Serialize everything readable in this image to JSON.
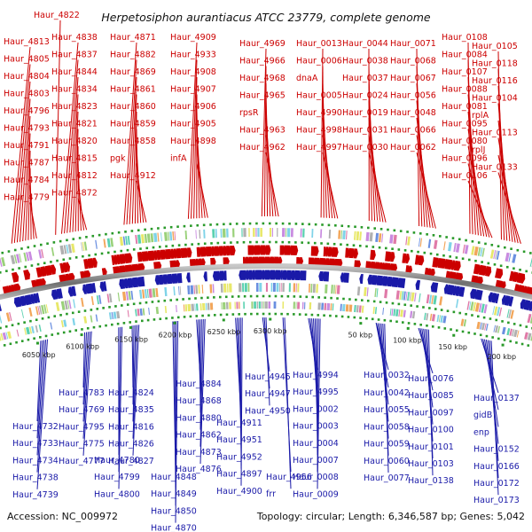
{
  "title": "Herpetosiphon aurantiacus ATCC 23779, complete genome",
  "footer": {
    "accession": "Accession: NC_009972",
    "info": "Topology: circular; Length: 6,346,587 bp; Genes: 5,042"
  },
  "colors": {
    "top_genes": "#cc0000",
    "bottom_genes": "#1a1aa8",
    "backbone": "#888888",
    "tick_marks": "#2a9a2a"
  },
  "scale_ticks": [
    "6050 kbp",
    "6100 kbp",
    "6150 kbp",
    "6200 kbp",
    "6250 kbp",
    "6300 kbp",
    "50 kbp",
    "100 kbp",
    "150 kbp",
    "200 kbp"
  ],
  "top_labels": [
    "Haur_4822",
    "Haur_4813",
    "Haur_4805",
    "Haur_4804",
    "Haur_4803",
    "Haur_4796",
    "Haur_4793",
    "Haur_4791",
    "Haur_4787",
    "Haur_4784",
    "Haur_4779",
    "Haur_4838",
    "Haur_4837",
    "Haur_4844",
    "Haur_4834",
    "Haur_4823",
    "Haur_4821",
    "Haur_4820",
    "Haur_4815",
    "Haur_4812",
    "Haur_4872",
    "Haur_4871",
    "Haur_4882",
    "Haur_4869",
    "Haur_4861",
    "Haur_4860",
    "Haur_4859",
    "Haur_4858",
    "pgk",
    "Haur_4912",
    "Haur_4909",
    "Haur_4933",
    "Haur_4908",
    "Haur_4907",
    "Haur_4906",
    "Haur_4905",
    "Haur_4898",
    "infA",
    "Haur_4969",
    "Haur_4966",
    "Haur_4968",
    "Haur_4965",
    "rpsR",
    "Haur_4963",
    "Haur_4962",
    "Haur_0013",
    "Haur_0006",
    "dnaA",
    "Haur_0005",
    "Haur_4990",
    "Haur_4998",
    "Haur_4997",
    "Haur_0044",
    "Haur_0038",
    "Haur_0037",
    "Haur_0024",
    "Haur_0019",
    "Haur_0031",
    "Haur_0030",
    "Haur_0071",
    "Haur_0068",
    "Haur_0067",
    "Haur_0056",
    "Haur_0048",
    "Haur_0066",
    "Haur_0062",
    "Haur_0108",
    "Haur_0084",
    "Haur_0107",
    "Haur_0088",
    "Haur_0081",
    "Haur_0095",
    "Haur_0080",
    "Haur_0096",
    "Haur_0106",
    "Haur_0105",
    "Haur_0118",
    "Haur_0116",
    "Haur_0104",
    "rplA",
    "Haur_0113",
    "rplJ",
    "Haur_0133"
  ],
  "bottom_labels": [
    "Haur_4783",
    "Haur_4769",
    "Haur_4795",
    "Haur_4775",
    "Haur_4777",
    "Haur_4732",
    "Haur_4733",
    "Haur_4734",
    "Haur_4738",
    "Haur_4739",
    "Haur_4824",
    "Haur_4835",
    "Haur_4816",
    "Haur_4826",
    "Haur_4827",
    "Haur_4780",
    "Haur_4799",
    "Haur_4800",
    "Haur_4884",
    "Haur_4868",
    "Haur_4880",
    "Haur_4862",
    "Haur_4873",
    "Haur_4876",
    "Haur_4848",
    "Haur_4849",
    "Haur_4850",
    "Haur_4870",
    "Haur_4945",
    "Haur_4947",
    "Haur_4950",
    "Haur_4911",
    "Haur_4951",
    "Haur_4952",
    "Haur_4897",
    "Haur_4900",
    "Haur_4956",
    "frr",
    "Haur_4994",
    "Haur_4995",
    "Haur_0002",
    "Haur_0003",
    "Haur_0004",
    "Haur_0007",
    "Haur_0008",
    "Haur_0009",
    "Haur_0032",
    "Haur_0042",
    "Haur_0055",
    "Haur_0058",
    "Haur_0059",
    "Haur_0060",
    "Haur_0077",
    "Haur_0076",
    "Haur_0085",
    "Haur_0097",
    "Haur_0100",
    "Haur_0101",
    "Haur_0103",
    "Haur_0138",
    "Haur_0137",
    "gidB",
    "enp",
    "Haur_0152",
    "Haur_0166",
    "Haur_0172",
    "Haur_0173"
  ]
}
